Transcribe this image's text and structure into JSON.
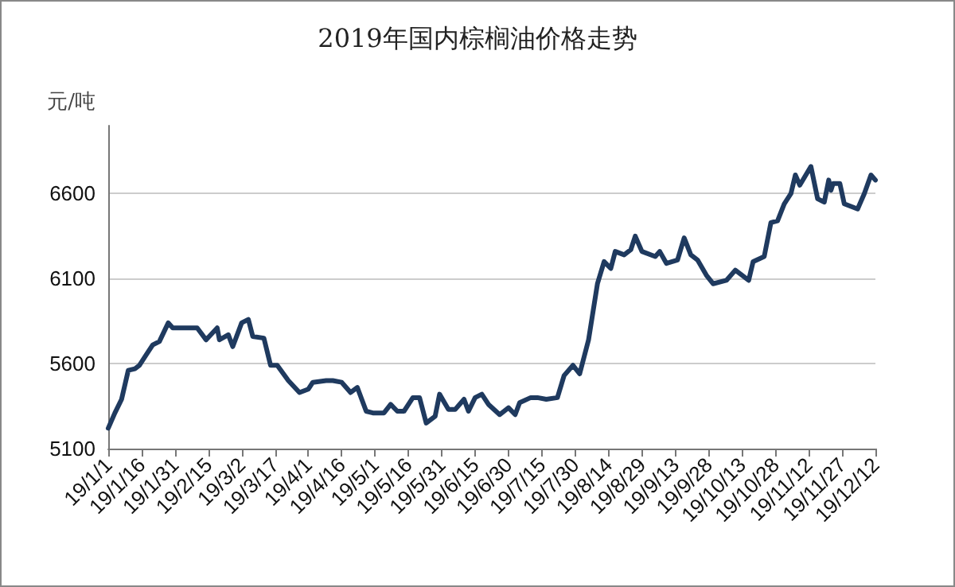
{
  "chart_data": {
    "type": "line",
    "title": "2019年国内棕榈油价格走势",
    "ylabel": "元/吨",
    "x": [
      "2019-01-01",
      "2019-01-04",
      "2019-01-07",
      "2019-01-10",
      "2019-01-13",
      "2019-01-15",
      "2019-01-18",
      "2019-01-21",
      "2019-01-24",
      "2019-01-28",
      "2019-01-30",
      "2019-02-04",
      "2019-02-10",
      "2019-02-14",
      "2019-02-19",
      "2019-02-20",
      "2019-02-24",
      "2019-02-26",
      "2019-03-02",
      "2019-03-05",
      "2019-03-07",
      "2019-03-12",
      "2019-03-15",
      "2019-03-18",
      "2019-03-23",
      "2019-03-28",
      "2019-04-01",
      "2019-04-03",
      "2019-04-09",
      "2019-04-12",
      "2019-04-16",
      "2019-04-20",
      "2019-04-23",
      "2019-04-27",
      "2019-04-30",
      "2019-05-05",
      "2019-05-08",
      "2019-05-11",
      "2019-05-14",
      "2019-05-18",
      "2019-05-21",
      "2019-05-24",
      "2019-05-28",
      "2019-05-30",
      "2019-06-03",
      "2019-06-06",
      "2019-06-10",
      "2019-06-12",
      "2019-06-15",
      "2019-06-18",
      "2019-06-21",
      "2019-06-26",
      "2019-06-30",
      "2019-07-03",
      "2019-07-05",
      "2019-07-10",
      "2019-07-13",
      "2019-07-17",
      "2019-07-22",
      "2019-07-25",
      "2019-07-29",
      "2019-08-01",
      "2019-08-05",
      "2019-08-09",
      "2019-08-12",
      "2019-08-15",
      "2019-08-17",
      "2019-08-21",
      "2019-08-24",
      "2019-08-26",
      "2019-08-29",
      "2019-09-04",
      "2019-09-06",
      "2019-09-09",
      "2019-09-14",
      "2019-09-17",
      "2019-09-20",
      "2019-09-23",
      "2019-09-27",
      "2019-09-30",
      "2019-10-06",
      "2019-10-10",
      "2019-10-12",
      "2019-10-16",
      "2019-10-18",
      "2019-10-23",
      "2019-10-26",
      "2019-10-29",
      "2019-11-01",
      "2019-11-04",
      "2019-11-06",
      "2019-11-08",
      "2019-11-13",
      "2019-11-16",
      "2019-11-19",
      "2019-11-21",
      "2019-11-22",
      "2019-11-23",
      "2019-11-26",
      "2019-11-28",
      "2019-12-04",
      "2019-12-07",
      "2019-12-10",
      "2019-12-12"
    ],
    "series": [
      {
        "color": "#1f3a5f",
        "values": [
          5220,
          5310,
          5390,
          5560,
          5570,
          5590,
          5650,
          5710,
          5730,
          5840,
          5810,
          5810,
          5810,
          5740,
          5810,
          5740,
          5770,
          5700,
          5840,
          5860,
          5760,
          5750,
          5590,
          5590,
          5500,
          5430,
          5450,
          5490,
          5500,
          5500,
          5490,
          5430,
          5460,
          5320,
          5310,
          5310,
          5360,
          5320,
          5320,
          5400,
          5400,
          5250,
          5290,
          5420,
          5330,
          5330,
          5390,
          5320,
          5400,
          5420,
          5360,
          5300,
          5340,
          5300,
          5370,
          5400,
          5400,
          5390,
          5400,
          5530,
          5590,
          5540,
          5740,
          6070,
          6200,
          6160,
          6260,
          6240,
          6270,
          6350,
          6260,
          6230,
          6260,
          6190,
          6210,
          6340,
          6240,
          6210,
          6120,
          6070,
          6090,
          6150,
          6130,
          6090,
          6200,
          6230,
          6430,
          6440,
          6540,
          6600,
          6710,
          6650,
          6760,
          6570,
          6550,
          6680,
          6620,
          6660,
          6660,
          6540,
          6510,
          6600,
          6710,
          6680
        ]
      }
    ],
    "ylim": [
      5100,
      7000
    ],
    "yticks": [
      5100,
      5600,
      6100,
      6600
    ],
    "xlim": [
      "2019-01-01",
      "2019-12-12"
    ],
    "xticks": [
      {
        "value": "2019-01-01",
        "label": "19/1/1"
      },
      {
        "value": "2019-01-16",
        "label": "19/1/16"
      },
      {
        "value": "2019-01-31",
        "label": "19/1/31"
      },
      {
        "value": "2019-02-15",
        "label": "19/2/15"
      },
      {
        "value": "2019-03-02",
        "label": "19/3/2"
      },
      {
        "value": "2019-03-17",
        "label": "19/3/17"
      },
      {
        "value": "2019-04-01",
        "label": "19/4/1"
      },
      {
        "value": "2019-04-16",
        "label": "19/4/16"
      },
      {
        "value": "2019-05-01",
        "label": "19/5/1"
      },
      {
        "value": "2019-05-16",
        "label": "19/5/16"
      },
      {
        "value": "2019-05-31",
        "label": "19/5/31"
      },
      {
        "value": "2019-06-15",
        "label": "19/6/15"
      },
      {
        "value": "2019-06-30",
        "label": "19/6/30"
      },
      {
        "value": "2019-07-15",
        "label": "19/7/15"
      },
      {
        "value": "2019-07-30",
        "label": "19/7/30"
      },
      {
        "value": "2019-08-14",
        "label": "19/8/14"
      },
      {
        "value": "2019-08-29",
        "label": "19/8/29"
      },
      {
        "value": "2019-09-13",
        "label": "19/9/13"
      },
      {
        "value": "2019-09-28",
        "label": "19/9/28"
      },
      {
        "value": "2019-10-13",
        "label": "19/10/13"
      },
      {
        "value": "2019-10-28",
        "label": "19/10/28"
      },
      {
        "value": "2019-11-12",
        "label": "19/11/12"
      },
      {
        "value": "2019-11-27",
        "label": "19/11/27"
      },
      {
        "value": "2019-12-12",
        "label": "19/12/12"
      }
    ],
    "grid": "y",
    "marker": "none",
    "line_style": "solid"
  }
}
